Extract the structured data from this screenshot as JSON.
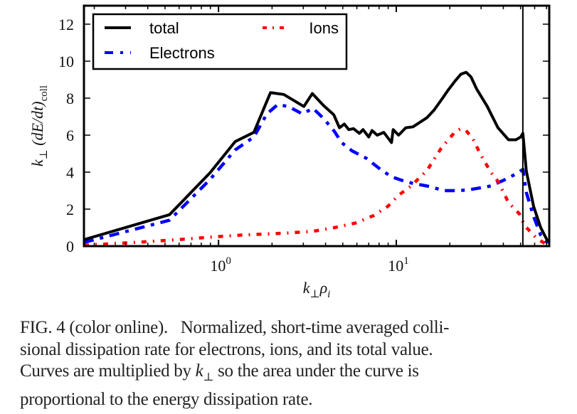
{
  "chart_data": {
    "type": "line",
    "title": "",
    "xlabel": "k⊥ρi",
    "xlabel_parts": {
      "base": "k",
      "sub1": "⊥",
      "mid": "ρ",
      "sub2": "i"
    },
    "ylabel": "k⊥ (dE/dt)coll",
    "ylabel_parts": {
      "k": "k",
      "perp": "⊥",
      "body": " (dE/dt)",
      "sub": "coll"
    },
    "xscale": "log",
    "xlim": [
      0.175,
      72.5
    ],
    "ylim": [
      0,
      13
    ],
    "x_ticks": [
      {
        "value": 1,
        "base": "10",
        "exp": "0"
      },
      {
        "value": 10,
        "base": "10",
        "exp": "1"
      }
    ],
    "y_ticks": [
      0,
      2,
      4,
      6,
      8,
      10,
      12
    ],
    "grid": false,
    "legend": {
      "placement": "top-left",
      "columns": 2
    },
    "vertical_line": {
      "x": 51.5,
      "color": "#000000"
    },
    "series": [
      {
        "name": "total",
        "color": "#000000",
        "style": "solid",
        "x": [
          0.175,
          0.53,
          0.895,
          1.24,
          1.58,
          1.96,
          2.33,
          3.02,
          3.37,
          3.9,
          4.45,
          4.79,
          5.1,
          5.4,
          5.75,
          6.2,
          6.5,
          7.0,
          7.3,
          7.8,
          8.5,
          9.4,
          9.6,
          10.3,
          11.3,
          12.4,
          13.6,
          14.9,
          16.3,
          17.9,
          19.6,
          21.5,
          23.1,
          24.7,
          26.3,
          28.3,
          32.5,
          37.3,
          42.8,
          47.0,
          50.1,
          51.5,
          53.9,
          59.2,
          64.9,
          71.2
        ],
        "y": [
          0.35,
          1.7,
          3.96,
          5.65,
          6.15,
          8.3,
          8.2,
          7.55,
          8.25,
          7.6,
          7.1,
          6.4,
          6.6,
          6.3,
          6.35,
          6.1,
          6.3,
          5.9,
          6.25,
          6.0,
          6.15,
          5.6,
          6.3,
          6.0,
          6.4,
          6.45,
          6.7,
          6.95,
          7.35,
          7.9,
          8.45,
          8.95,
          9.3,
          9.4,
          9.15,
          8.5,
          7.55,
          6.4,
          5.75,
          5.75,
          5.9,
          6.1,
          4.05,
          2.15,
          1.0,
          0.25
        ]
      },
      {
        "name": "Electrons",
        "color": "#0000ff",
        "style": "dashed",
        "x": [
          0.175,
          0.53,
          0.895,
          1.24,
          1.58,
          1.87,
          2.15,
          2.47,
          2.96,
          3.4,
          3.9,
          4.49,
          4.92,
          5.64,
          6.78,
          8.15,
          9.4,
          10.8,
          12.3,
          14.9,
          18.7,
          22.5,
          25.8,
          34.0,
          40.9,
          47.0,
          51.5,
          53.9,
          59.2,
          64.9,
          71.2
        ],
        "y": [
          0.2,
          1.4,
          3.6,
          5.2,
          5.9,
          7.15,
          7.65,
          7.55,
          7.15,
          7.45,
          6.9,
          6.2,
          5.6,
          5.15,
          4.75,
          4.15,
          3.75,
          3.55,
          3.4,
          3.25,
          3.0,
          3.0,
          3.05,
          3.25,
          3.6,
          3.9,
          4.15,
          2.9,
          1.6,
          0.6,
          0.15
        ]
      },
      {
        "name": "Ions",
        "color": "#ff0000",
        "style": "dashdot",
        "x": [
          0.175,
          0.34,
          0.59,
          0.94,
          1.36,
          2.35,
          3.4,
          4.49,
          5.9,
          7.45,
          8.97,
          10.3,
          12.1,
          14.9,
          17.9,
          21.5,
          23.1,
          24.7,
          27.0,
          29.6,
          34.0,
          37.3,
          42.8,
          49.2,
          52.8,
          61.9,
          69.8
        ],
        "y": [
          0.05,
          0.2,
          0.35,
          0.5,
          0.6,
          0.7,
          0.8,
          1.0,
          1.25,
          1.65,
          2.15,
          2.75,
          3.25,
          4.1,
          5.3,
          6.2,
          6.35,
          6.25,
          5.8,
          5.0,
          4.0,
          3.5,
          2.35,
          1.75,
          1.1,
          0.4,
          0.1
        ]
      }
    ]
  },
  "caption": {
    "line1": "FIG. 4 (color online).   Normalized, short-time averaged colli-",
    "line2": "sional dissipation rate for electrons, ions, and its total value.",
    "line3_a": "Curves are multiplied by ",
    "line3_k": "k",
    "line3_perp": "⊥",
    "line3_b": " so the area under the curve is",
    "line4": "proportional to the energy dissipation rate."
  }
}
